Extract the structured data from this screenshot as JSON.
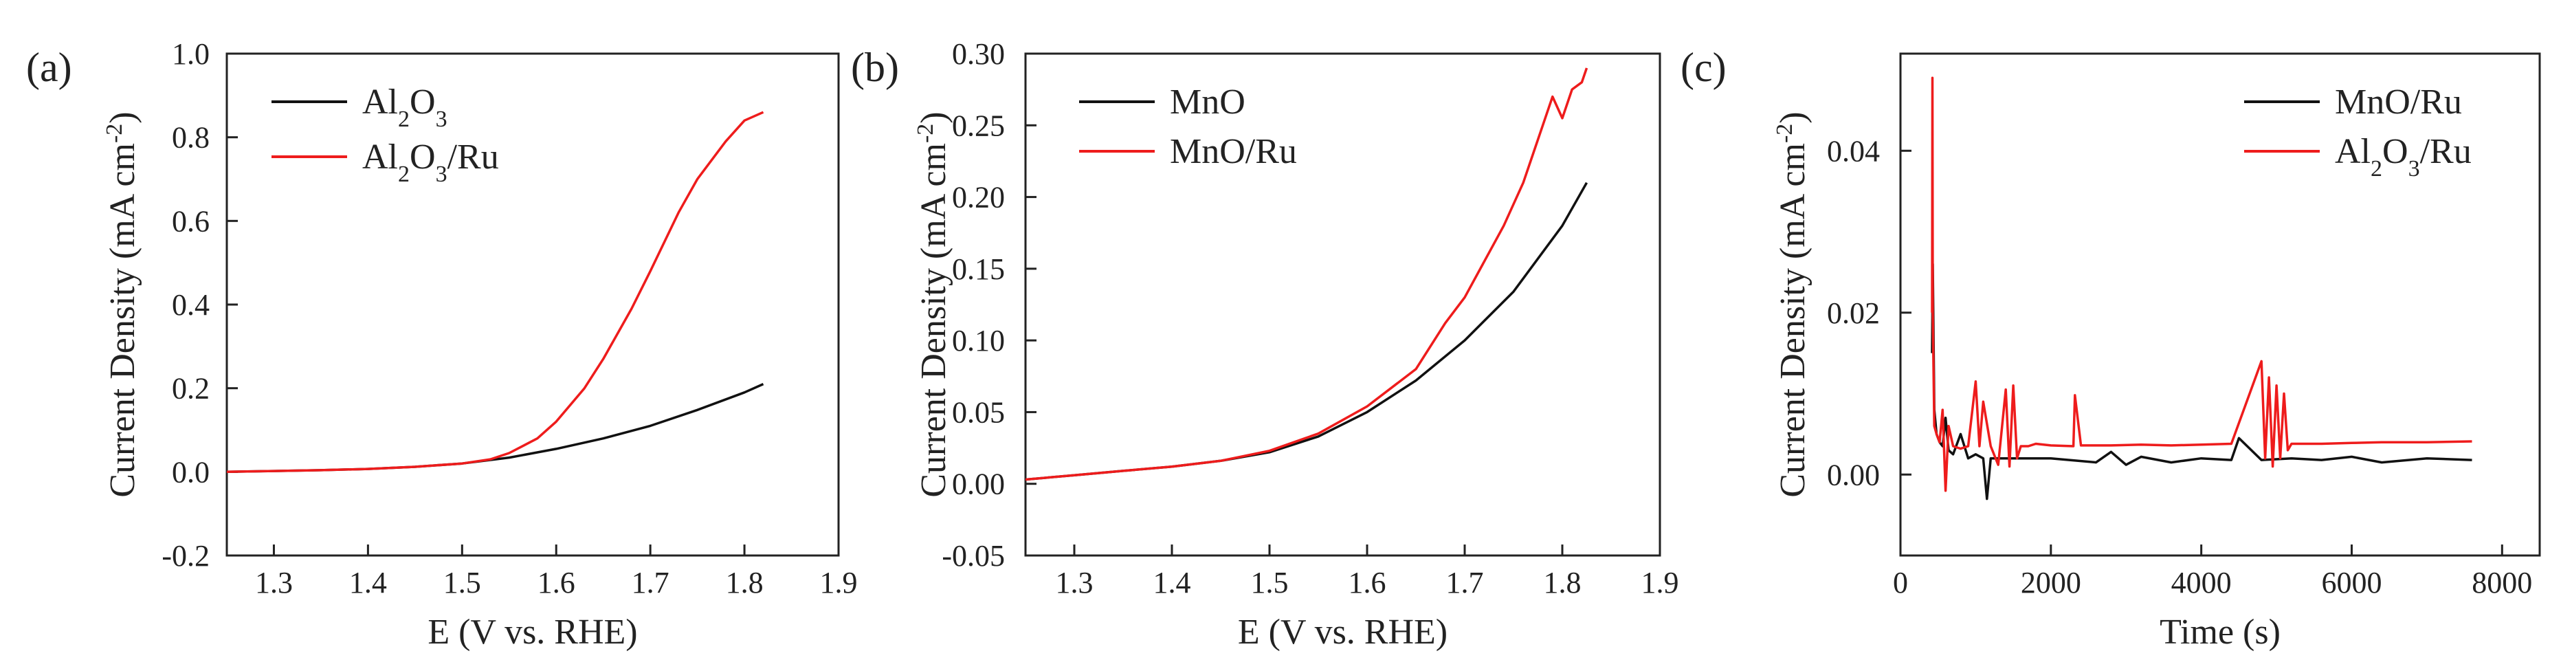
{
  "chart_data": [
    {
      "type": "line",
      "panel_label": "(a)",
      "xlabel": "E (V vs. RHE)",
      "ylabel": "Current Density (mA cm",
      "ylabel_sup": "-2",
      "ylabel_tail": ")",
      "xlim": [
        1.25,
        1.9
      ],
      "ylim": [
        -0.2,
        1.0
      ],
      "xticks": [
        1.3,
        1.4,
        1.5,
        1.6,
        1.7,
        1.8,
        1.9
      ],
      "xtick_labels": [
        "1.3",
        "1.4",
        "1.5",
        "1.6",
        "1.7",
        "1.8",
        "1.9"
      ],
      "yticks": [
        -0.2,
        0.0,
        0.2,
        0.4,
        0.6,
        0.8,
        1.0
      ],
      "ytick_labels": [
        "-0.2",
        "0.0",
        "0.2",
        "0.4",
        "0.6",
        "0.8",
        "1.0"
      ],
      "legend_position": "top-left",
      "series": [
        {
          "name": "Al2O3",
          "legend_parts": [
            [
              "Al",
              ""
            ],
            [
              "2",
              "sub"
            ],
            [
              "O",
              ""
            ],
            [
              "3",
              "sub"
            ]
          ],
          "color": "#111111",
          "x": [
            1.25,
            1.3,
            1.35,
            1.4,
            1.45,
            1.5,
            1.55,
            1.6,
            1.65,
            1.7,
            1.75,
            1.8,
            1.82
          ],
          "y": [
            0.0,
            0.002,
            0.004,
            0.007,
            0.012,
            0.02,
            0.034,
            0.055,
            0.08,
            0.11,
            0.148,
            0.19,
            0.21
          ]
        },
        {
          "name": "Al2O3/Ru",
          "legend_parts": [
            [
              "Al",
              ""
            ],
            [
              "2",
              "sub"
            ],
            [
              "O",
              ""
            ],
            [
              "3",
              "sub"
            ],
            [
              "/Ru",
              ""
            ]
          ],
          "color": "#ee1c1c",
          "x": [
            1.25,
            1.3,
            1.35,
            1.4,
            1.45,
            1.5,
            1.53,
            1.55,
            1.58,
            1.6,
            1.63,
            1.65,
            1.68,
            1.7,
            1.73,
            1.75,
            1.78,
            1.8,
            1.82
          ],
          "y": [
            0.0,
            0.002,
            0.004,
            0.007,
            0.012,
            0.02,
            0.03,
            0.045,
            0.08,
            0.12,
            0.2,
            0.27,
            0.39,
            0.48,
            0.62,
            0.7,
            0.79,
            0.84,
            0.86
          ]
        }
      ]
    },
    {
      "type": "line",
      "panel_label": "(b)",
      "xlabel": "E (V vs. RHE)",
      "ylabel": "Current Density (mA cm",
      "ylabel_sup": "-2",
      "ylabel_tail": ")",
      "xlim": [
        1.25,
        1.9
      ],
      "ylim": [
        -0.05,
        0.3
      ],
      "xticks": [
        1.3,
        1.4,
        1.5,
        1.6,
        1.7,
        1.8,
        1.9
      ],
      "xtick_labels": [
        "1.3",
        "1.4",
        "1.5",
        "1.6",
        "1.7",
        "1.8",
        "1.9"
      ],
      "yticks": [
        -0.05,
        0.0,
        0.05,
        0.1,
        0.15,
        0.2,
        0.25,
        0.3
      ],
      "ytick_labels": [
        "-0.05",
        "0.00",
        "0.05",
        "0.10",
        "0.15",
        "0.20",
        "0.25",
        "0.30"
      ],
      "legend_position": "top-left",
      "series": [
        {
          "name": "MnO",
          "legend_parts": [
            [
              "MnO",
              ""
            ]
          ],
          "color": "#111111",
          "x": [
            1.25,
            1.3,
            1.35,
            1.4,
            1.45,
            1.5,
            1.55,
            1.6,
            1.65,
            1.7,
            1.75,
            1.8,
            1.825
          ],
          "y": [
            0.003,
            0.006,
            0.009,
            0.012,
            0.016,
            0.022,
            0.033,
            0.05,
            0.072,
            0.1,
            0.134,
            0.18,
            0.21
          ]
        },
        {
          "name": "MnO/Ru",
          "legend_parts": [
            [
              "MnO/Ru",
              ""
            ]
          ],
          "color": "#ee1c1c",
          "x": [
            1.25,
            1.3,
            1.35,
            1.4,
            1.45,
            1.5,
            1.55,
            1.6,
            1.65,
            1.68,
            1.7,
            1.72,
            1.74,
            1.76,
            1.77,
            1.78,
            1.79,
            1.8,
            1.81,
            1.82,
            1.825
          ],
          "y": [
            0.003,
            0.006,
            0.009,
            0.012,
            0.016,
            0.023,
            0.035,
            0.054,
            0.08,
            0.112,
            0.13,
            0.155,
            0.18,
            0.21,
            0.23,
            0.25,
            0.27,
            0.255,
            0.275,
            0.28,
            0.29
          ]
        }
      ]
    },
    {
      "type": "line",
      "panel_label": "(c)",
      "xlabel": "Time (s)",
      "ylabel": "Current Density (mA cm",
      "ylabel_sup": "-2",
      "ylabel_tail": ")",
      "xlim": [
        0,
        8500
      ],
      "ylim": [
        -0.01,
        0.052
      ],
      "xticks": [
        0,
        2000,
        4000,
        6000,
        8000
      ],
      "xtick_labels": [
        "0",
        "2000",
        "4000",
        "6000",
        "8000"
      ],
      "yticks": [
        0.0,
        0.02,
        0.04
      ],
      "ytick_labels": [
        "0.00",
        "0.02",
        "0.04"
      ],
      "legend_position": "top-right",
      "series": [
        {
          "name": "MnO/Ru",
          "legend_parts": [
            [
              "MnO/Ru",
              ""
            ]
          ],
          "color": "#111111",
          "x": [
            420,
            430,
            450,
            480,
            520,
            560,
            600,
            640,
            700,
            800,
            900,
            1000,
            1100,
            1150,
            1200,
            1300,
            1500,
            2000,
            2600,
            2800,
            3000,
            3200,
            3600,
            4000,
            4400,
            4500,
            4800,
            5200,
            5600,
            6000,
            6400,
            7000,
            7600
          ],
          "y": [
            0.015,
            0.026,
            0.008,
            0.005,
            0.004,
            0.0035,
            0.007,
            0.003,
            0.0025,
            0.005,
            0.002,
            0.0025,
            0.002,
            -0.003,
            0.002,
            0.002,
            0.002,
            0.002,
            0.0015,
            0.0028,
            0.0012,
            0.0022,
            0.0015,
            0.002,
            0.0018,
            0.0045,
            0.0018,
            0.002,
            0.0018,
            0.0022,
            0.0015,
            0.002,
            0.0018
          ]
        },
        {
          "name": "Al2O3/Ru",
          "legend_parts": [
            [
              "Al",
              ""
            ],
            [
              "2",
              "sub"
            ],
            [
              "O",
              ""
            ],
            [
              "3",
              "sub"
            ],
            [
              "/Ru",
              ""
            ]
          ],
          "color": "#ee1c1c",
          "x": [
            420,
            425,
            430,
            450,
            480,
            520,
            560,
            600,
            640,
            700,
            800,
            900,
            1000,
            1050,
            1100,
            1200,
            1300,
            1400,
            1450,
            1500,
            1550,
            1600,
            1700,
            1800,
            2000,
            2300,
            2320,
            2400,
            2800,
            3200,
            3600,
            4000,
            4400,
            4800,
            4850,
            4900,
            4950,
            5000,
            5050,
            5100,
            5150,
            5200,
            5600,
            6000,
            6400,
            7000,
            7600
          ],
          "y": [
            0.02,
            0.049,
            0.02,
            0.006,
            0.005,
            0.004,
            0.008,
            -0.002,
            0.006,
            0.0035,
            0.0032,
            0.0035,
            0.0115,
            0.0035,
            0.009,
            0.0035,
            0.0012,
            0.0105,
            0.001,
            0.011,
            0.002,
            0.0035,
            0.0035,
            0.0038,
            0.0036,
            0.0035,
            0.0098,
            0.0036,
            0.0036,
            0.0037,
            0.0036,
            0.0037,
            0.0038,
            0.014,
            0.002,
            0.012,
            0.001,
            0.011,
            0.002,
            0.01,
            0.003,
            0.0038,
            0.0038,
            0.0039,
            0.004,
            0.004,
            0.0041
          ]
        }
      ]
    }
  ]
}
